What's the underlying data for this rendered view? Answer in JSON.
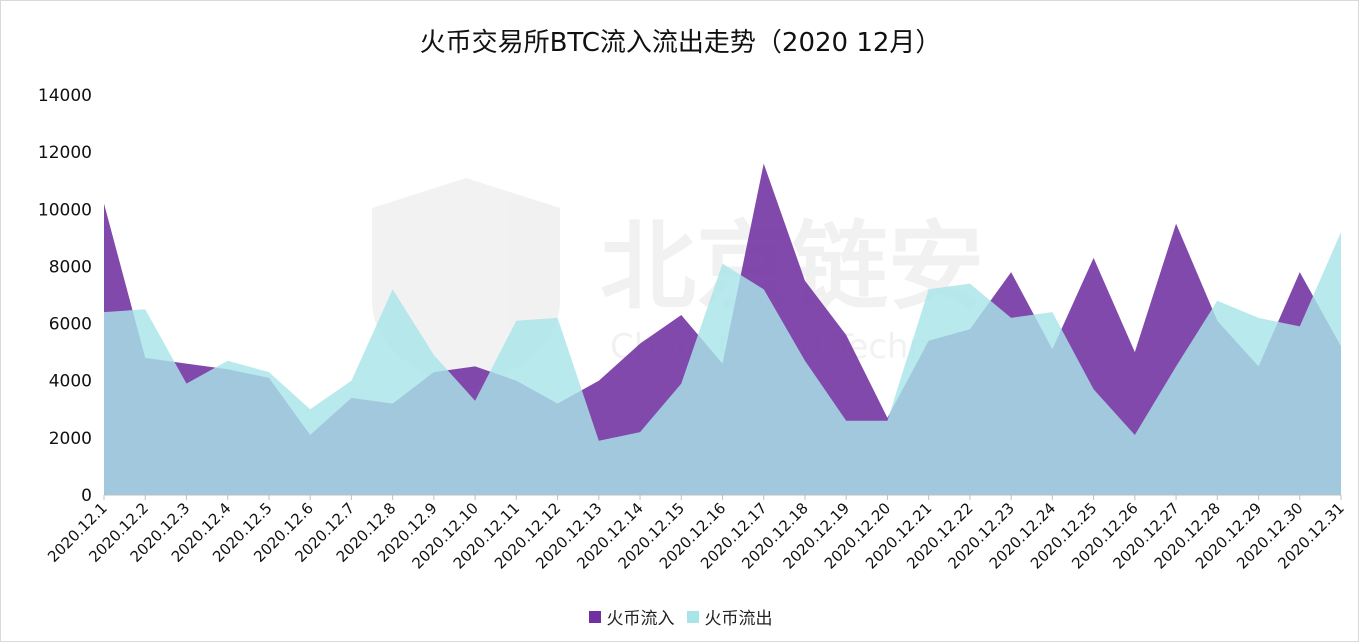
{
  "chart_data": {
    "type": "area",
    "title": "火币交易所BTC流入流出走势（2020 12月）",
    "xlabel": "",
    "ylabel": "",
    "ylim": [
      0,
      14000
    ],
    "yticks": [
      0,
      2000,
      4000,
      6000,
      8000,
      10000,
      12000,
      14000
    ],
    "grid": false,
    "legend_position": "bottom",
    "categories": [
      "2020.12.1",
      "2020.12.2",
      "2020.12.3",
      "2020.12.4",
      "2020.12.5",
      "2020.12.6",
      "2020.12.7",
      "2020.12.8",
      "2020.12.9",
      "2020.12.10",
      "2020.12.11",
      "2020.12.12",
      "2020.12.13",
      "2020.12.14",
      "2020.12.15",
      "2020.12.16",
      "2020.12.17",
      "2020.12.18",
      "2020.12.19",
      "2020.12.20",
      "2020.12.21",
      "2020.12.22",
      "2020.12.23",
      "2020.12.24",
      "2020.12.25",
      "2020.12.26",
      "2020.12.27",
      "2020.12.28",
      "2020.12.29",
      "2020.12.30",
      "2020.12.31"
    ],
    "series": [
      {
        "name": "火币流入",
        "color": "#7030A0",
        "values": [
          10200,
          4800,
          4600,
          4400,
          4100,
          2100,
          3400,
          3200,
          4300,
          4500,
          4000,
          3200,
          4000,
          5300,
          6300,
          4600,
          11600,
          7500,
          5600,
          2700,
          5400,
          5800,
          7800,
          5100,
          8300,
          5000,
          9500,
          6100,
          4500,
          7800,
          5200
        ]
      },
      {
        "name": "火币流出",
        "color": "#A8E4E8",
        "values": [
          6400,
          6500,
          3900,
          4700,
          4300,
          3000,
          4000,
          7200,
          4900,
          3300,
          6100,
          6200,
          1900,
          2200,
          3900,
          8100,
          7200,
          4700,
          2600,
          2600,
          7200,
          7400,
          6200,
          6400,
          3700,
          2100,
          4500,
          6800,
          6200,
          5900,
          9200
        ]
      }
    ],
    "watermark": {
      "title": "北京链安",
      "subtitle": "Chain Guard Technology"
    }
  }
}
